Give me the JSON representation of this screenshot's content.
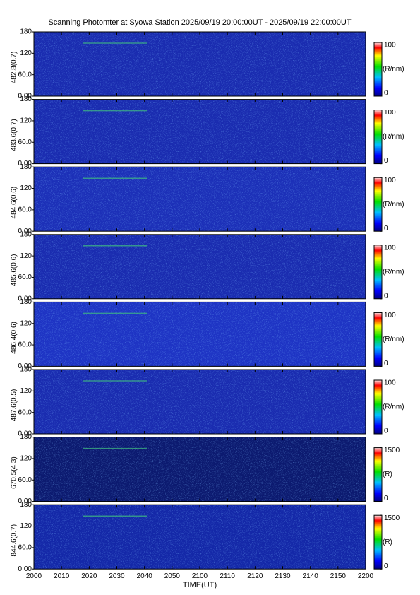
{
  "title": "Scanning Photomter at Syowa Station 2025/09/19 20:00:00UT - 2025/09/19 22:00:00UT",
  "xlabel": "TIME(UT)",
  "xtick_labels": [
    "2000",
    "2010",
    "2020",
    "2030",
    "2040",
    "2050",
    "2100",
    "2110",
    "2120",
    "2130",
    "2140",
    "2150",
    "2200"
  ],
  "chart_data": [
    {
      "type": "heatmap",
      "ylabel": "482.8(0.7)",
      "color": "#1a2cb0",
      "ylim": [
        0,
        180
      ],
      "yticks": [
        {
          "value": 0,
          "label": "0.00"
        },
        {
          "value": 60,
          "label": "60.0"
        },
        120,
        180
      ],
      "clim": [
        0,
        100
      ],
      "cticks": [
        0,
        100
      ],
      "clabel": "(R/nm)"
    },
    {
      "type": "heatmap",
      "ylabel": "483.6(0.7)",
      "color": "#1a2cb0",
      "ylim": [
        0,
        180
      ],
      "yticks": [
        {
          "value": 0,
          "label": "0.00"
        },
        {
          "value": 60,
          "label": "60.0"
        },
        120,
        180
      ],
      "clim": [
        0,
        100
      ],
      "cticks": [
        0,
        100
      ],
      "clabel": "(R/nm)"
    },
    {
      "type": "heatmap",
      "ylabel": "484.6(0.6)",
      "color": "#1c30b8",
      "ylim": [
        0,
        180
      ],
      "yticks": [
        {
          "value": 0,
          "label": "0.00"
        },
        {
          "value": 60,
          "label": "60.0"
        },
        120,
        180
      ],
      "clim": [
        0,
        100
      ],
      "cticks": [
        0,
        100
      ],
      "clabel": "(R/nm)"
    },
    {
      "type": "heatmap",
      "ylabel": "485.6(0.6)",
      "color": "#1a2cb0",
      "ylim": [
        0,
        180
      ],
      "yticks": [
        {
          "value": 0,
          "label": "0.00"
        },
        {
          "value": 60,
          "label": "60.0"
        },
        120,
        180
      ],
      "clim": [
        0,
        100
      ],
      "cticks": [
        0,
        100
      ],
      "clabel": "(R/nm)"
    },
    {
      "type": "heatmap",
      "ylabel": "486.4(0.6)",
      "color": "#1e34c4",
      "ylim": [
        0,
        180
      ],
      "yticks": [
        {
          "value": 0,
          "label": "0.00"
        },
        {
          "value": 60,
          "label": "60.0"
        },
        120,
        180
      ],
      "clim": [
        0,
        100
      ],
      "cticks": [
        0,
        100
      ],
      "clabel": "(R/nm)"
    },
    {
      "type": "heatmap",
      "ylabel": "487.6(0.5)",
      "color": "#1a2cb0",
      "ylim": [
        0,
        180
      ],
      "yticks": [
        {
          "value": 0,
          "label": "0.00"
        },
        {
          "value": 60,
          "label": "60.0"
        },
        120,
        180
      ],
      "clim": [
        0,
        100
      ],
      "cticks": [
        0,
        100
      ],
      "clabel": "(R/nm)"
    },
    {
      "type": "heatmap",
      "ylabel": "670.5(4.3)",
      "color": "#0c1a70",
      "ylim": [
        0,
        180
      ],
      "yticks": [
        {
          "value": 0,
          "label": "0.00"
        },
        {
          "value": 60,
          "label": "60.0"
        },
        120,
        180
      ],
      "clim": [
        0,
        1500
      ],
      "cticks": [
        0,
        1500
      ],
      "clabel": "(R)"
    },
    {
      "type": "heatmap",
      "ylabel": "844.6(0.7)",
      "color": "#1428a8",
      "ylim": [
        0,
        180
      ],
      "yticks": [
        {
          "value": 0,
          "label": "0.00"
        },
        {
          "value": 60,
          "label": "60.0"
        },
        120,
        180
      ],
      "clim": [
        0,
        1500
      ],
      "cticks": [
        0,
        1500
      ],
      "clabel": "(R)"
    }
  ]
}
